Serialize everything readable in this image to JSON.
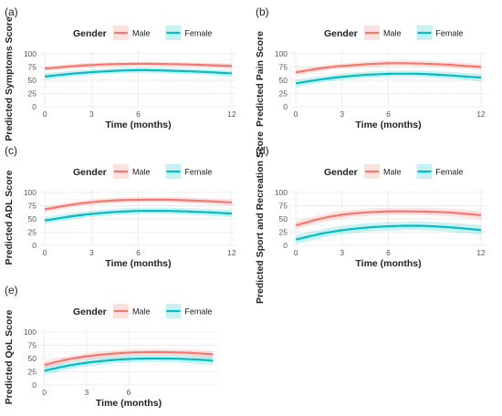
{
  "legend_title": "Gender",
  "chart_data": [
    {
      "type": "line",
      "panel_label": "(a)",
      "xlabel": "Time (months)",
      "ylabel": "Predicted Symptoms Score",
      "xlim": [
        -0.3,
        12.3
      ],
      "ylim": [
        0,
        105
      ],
      "xticks": [
        0,
        3,
        6,
        12
      ],
      "xtick_labels": [
        "0",
        "3",
        "6",
        "12"
      ],
      "yticks": [
        0,
        25,
        50,
        75,
        100
      ],
      "ytick_labels": [
        "0",
        "25",
        "50",
        "75",
        "100"
      ],
      "grid": true,
      "legend": "top",
      "series": [
        {
          "name": "Male",
          "color": "#f8766d",
          "x": [
            0,
            2,
            4,
            6,
            8,
            10,
            12
          ],
          "y": [
            72,
            77,
            80,
            81,
            80.5,
            79,
            77
          ],
          "ci_halfwidth": [
            5,
            4.5,
            4,
            4,
            4,
            4.5,
            5
          ]
        },
        {
          "name": "Female",
          "color": "#00bfc4",
          "x": [
            0,
            2,
            4,
            6,
            8,
            10,
            12
          ],
          "y": [
            57,
            63,
            67,
            69,
            68,
            66,
            63
          ],
          "ci_halfwidth": [
            6,
            5.5,
            5,
            5,
            5,
            5.5,
            6
          ]
        }
      ]
    },
    {
      "type": "line",
      "panel_label": "(b)",
      "xlabel": "Time (months)",
      "ylabel": "Predicted Pain Score",
      "xlim": [
        -0.3,
        12.3
      ],
      "ylim": [
        0,
        105
      ],
      "xticks": [
        0,
        3,
        6,
        12
      ],
      "xtick_labels": [
        "0",
        "3",
        "6",
        "12"
      ],
      "yticks": [
        0,
        25,
        50,
        75,
        100
      ],
      "ytick_labels": [
        "0",
        "25",
        "50",
        "75",
        "100"
      ],
      "grid": true,
      "legend": "top",
      "series": [
        {
          "name": "Male",
          "color": "#f8766d",
          "x": [
            0,
            2,
            4,
            6,
            8,
            10,
            12
          ],
          "y": [
            65,
            74,
            79,
            82,
            81.5,
            79,
            75
          ],
          "ci_halfwidth": [
            6,
            5,
            5,
            5,
            5,
            5.5,
            6
          ]
        },
        {
          "name": "Female",
          "color": "#00bfc4",
          "x": [
            0,
            2,
            4,
            6,
            8,
            10,
            12
          ],
          "y": [
            44,
            53,
            59,
            62,
            62,
            59,
            55
          ],
          "ci_halfwidth": [
            7,
            6,
            6,
            6,
            6,
            6.5,
            7
          ]
        }
      ]
    },
    {
      "type": "line",
      "panel_label": "(c)",
      "xlabel": "Time (months)",
      "ylabel": "Predicted ADL Score",
      "xlim": [
        -0.3,
        12.3
      ],
      "ylim": [
        0,
        105
      ],
      "xticks": [
        0,
        3,
        6,
        12
      ],
      "xtick_labels": [
        "0",
        "3",
        "6",
        "12"
      ],
      "yticks": [
        0,
        25,
        50,
        75,
        100
      ],
      "ytick_labels": [
        "0",
        "25",
        "50",
        "75",
        "100"
      ],
      "grid": true,
      "legend": "top",
      "series": [
        {
          "name": "Male",
          "color": "#f8766d",
          "x": [
            0,
            2,
            4,
            6,
            8,
            10,
            12
          ],
          "y": [
            68,
            78,
            84,
            86,
            86,
            84,
            81
          ],
          "ci_halfwidth": [
            6,
            5,
            5,
            5,
            5,
            5.5,
            6
          ]
        },
        {
          "name": "Female",
          "color": "#00bfc4",
          "x": [
            0,
            2,
            4,
            6,
            8,
            10,
            12
          ],
          "y": [
            47,
            56,
            62,
            65,
            65,
            63,
            60
          ],
          "ci_halfwidth": [
            7,
            6,
            6,
            6,
            6,
            6.5,
            7
          ]
        }
      ]
    },
    {
      "type": "line",
      "panel_label": "(d)",
      "xlabel": "Time (months)",
      "ylabel": "Predicted Sport and Recreation Score",
      "xlim": [
        -0.3,
        12.3
      ],
      "ylim": [
        0,
        105
      ],
      "xticks": [
        0,
        3,
        6,
        12
      ],
      "xtick_labels": [
        "0",
        "3",
        "6",
        "12"
      ],
      "yticks": [
        0,
        25,
        50,
        75,
        100
      ],
      "ytick_labels": [
        "0",
        "25",
        "50",
        "75",
        "100"
      ],
      "grid": true,
      "legend": "top",
      "series": [
        {
          "name": "Male",
          "color": "#f8766d",
          "x": [
            0,
            2,
            4,
            6,
            8,
            10,
            12
          ],
          "y": [
            38,
            53,
            61,
            64,
            64,
            62,
            57
          ],
          "ci_halfwidth": [
            8,
            7,
            7,
            7,
            7,
            7.5,
            8
          ]
        },
        {
          "name": "Female",
          "color": "#00bfc4",
          "x": [
            0,
            2,
            4,
            6,
            8,
            10,
            12
          ],
          "y": [
            11,
            24,
            32,
            36,
            37,
            34,
            29
          ],
          "ci_halfwidth": [
            9,
            8,
            8,
            8,
            8,
            8.5,
            9
          ]
        }
      ]
    },
    {
      "type": "line",
      "panel_label": "(e)",
      "xlabel": "Time (months)",
      "ylabel": "Predicted QoL Score",
      "xlim": [
        -0.3,
        12.3
      ],
      "ylim": [
        0,
        105
      ],
      "xticks": [
        0,
        3,
        6
      ],
      "xtick_labels": [
        "0",
        "3",
        "6"
      ],
      "yticks": [
        0,
        25,
        50,
        75,
        100
      ],
      "ytick_labels": [
        "0",
        "25",
        "50",
        "75",
        "100"
      ],
      "grid": true,
      "legend": "top",
      "series": [
        {
          "name": "Male",
          "color": "#f8766d",
          "x": [
            0,
            2,
            4,
            6,
            8,
            10,
            12
          ],
          "y": [
            38,
            50,
            57,
            61,
            62,
            61,
            58
          ],
          "ci_halfwidth": [
            7,
            6,
            6,
            6,
            6,
            6.5,
            7
          ]
        },
        {
          "name": "Female",
          "color": "#00bfc4",
          "x": [
            0,
            2,
            4,
            6,
            8,
            10,
            12
          ],
          "y": [
            27,
            38,
            45,
            49,
            50,
            49,
            46
          ],
          "ci_halfwidth": [
            8,
            7,
            7,
            7,
            7,
            7.5,
            8
          ]
        }
      ]
    }
  ]
}
